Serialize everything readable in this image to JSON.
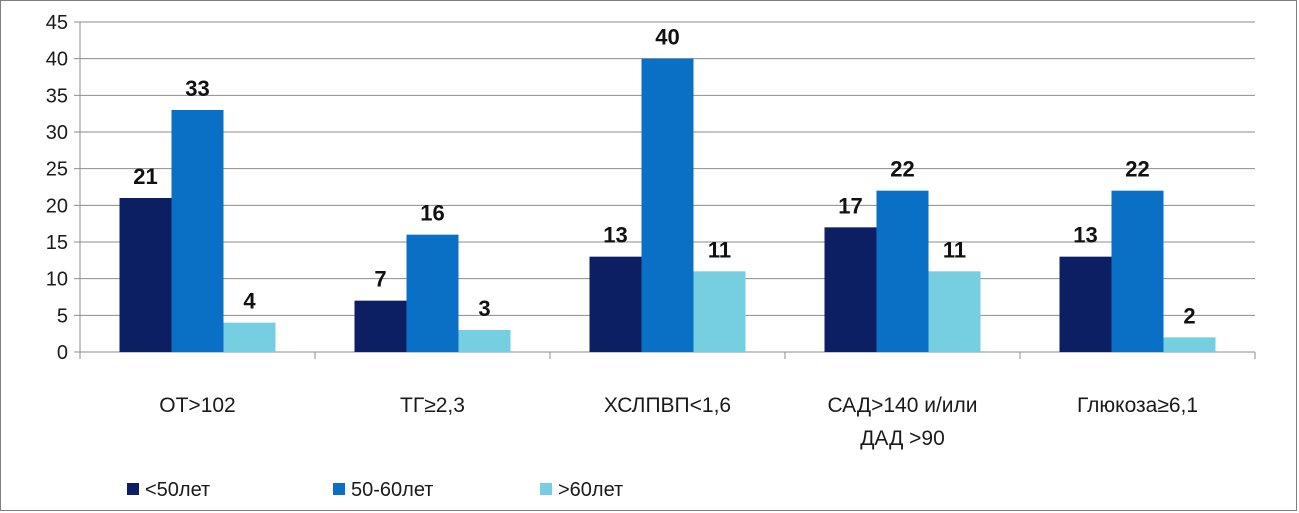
{
  "chart_data": {
    "type": "bar",
    "title": "",
    "xlabel": "",
    "ylabel": "",
    "ylim": [
      0,
      45
    ],
    "yticks": [
      0,
      5,
      10,
      15,
      20,
      25,
      30,
      35,
      40,
      45
    ],
    "grid": true,
    "legend_position": "bottom-left",
    "categories": [
      [
        "ОТ>102"
      ],
      [
        "ТГ≥2,3"
      ],
      [
        "ХСЛПВП<1,6"
      ],
      [
        "САД>140 и/или",
        "ДАД >90"
      ],
      [
        "Глюкоза≥6,1"
      ]
    ],
    "series": [
      {
        "name": "<50лет",
        "color": "#0d1f63",
        "values": [
          21,
          7,
          13,
          17,
          13
        ]
      },
      {
        "name": "50-60лет",
        "color": "#0a70c6",
        "values": [
          33,
          16,
          40,
          22,
          22
        ]
      },
      {
        "name": ">60лет",
        "color": "#76cfe0",
        "values": [
          4,
          3,
          11,
          11,
          2
        ]
      }
    ]
  }
}
